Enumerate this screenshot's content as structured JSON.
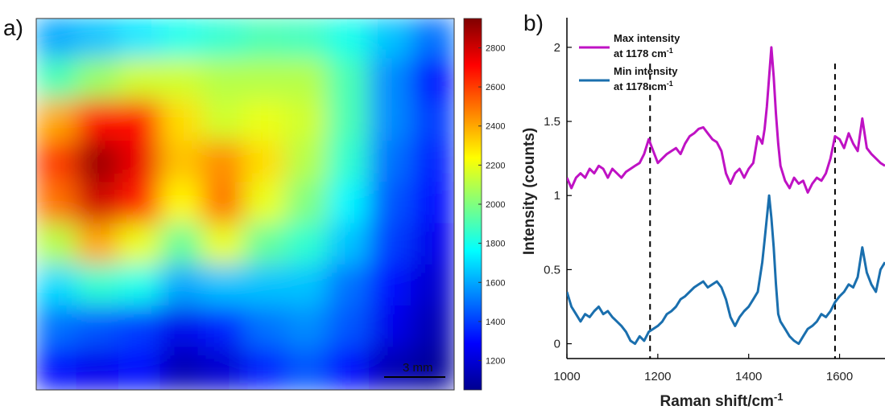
{
  "panel_a": {
    "label": "a)",
    "scale_bar_label": "3 mm",
    "colorbar_ticks": [
      1200,
      1400,
      1600,
      1800,
      2000,
      2200,
      2400,
      2600,
      2800
    ],
    "colorbar_range": [
      1050,
      2950
    ]
  },
  "panel_b": {
    "label": "b)",
    "legend": [
      {
        "line1": "Max intensity",
        "line2": "at 1178 cm",
        "sup": "-1",
        "color": "#bf12c4"
      },
      {
        "line1": "Min intensity",
        "line2": "at 1178 cm",
        "sup": "-1",
        "color": "#1a6fae"
      }
    ]
  },
  "chart_data": [
    {
      "type": "heatmap",
      "title": "",
      "grid": [
        [
          1600,
          1650,
          1720,
          1800,
          1850,
          1900,
          1880,
          1800,
          1650,
          1500
        ],
        [
          1900,
          2050,
          2150,
          2150,
          2100,
          2100,
          2100,
          1900,
          1550,
          1300
        ],
        [
          2400,
          2700,
          2700,
          2300,
          2150,
          2200,
          2150,
          1900,
          1550,
          1400
        ],
        [
          2600,
          2900,
          2750,
          2350,
          2450,
          2300,
          2100,
          1850,
          1500,
          1350
        ],
        [
          2500,
          2800,
          2650,
          2250,
          2500,
          2200,
          2000,
          1750,
          1450,
          1300
        ],
        [
          2100,
          2400,
          2200,
          1950,
          2200,
          1950,
          1850,
          1650,
          1400,
          1250
        ],
        [
          1700,
          1850,
          1800,
          1600,
          1650,
          1650,
          1650,
          1500,
          1300,
          1200
        ],
        [
          1500,
          1450,
          1400,
          1250,
          1350,
          1500,
          1550,
          1450,
          1250,
          1150
        ],
        [
          1300,
          1250,
          1300,
          1150,
          1200,
          1350,
          1450,
          1300,
          1150,
          1100
        ]
      ],
      "colorbar_range": [
        1050,
        2950
      ]
    },
    {
      "type": "line",
      "xlabel": "Raman shift/cm",
      "xlabel_sup": "-1",
      "ylabel": "Intensity (counts)",
      "xlim": [
        1000,
        1700
      ],
      "ylim": [
        -0.1,
        2.2
      ],
      "xticks": [
        1000,
        1200,
        1400,
        1600
      ],
      "yticks": [
        0,
        0.5,
        1,
        1.5,
        2
      ],
      "vlines": [
        1183,
        1590
      ],
      "series": [
        {
          "name": "Max intensity at 1178 cm-1",
          "color": "#bf12c4",
          "x": [
            1000,
            1010,
            1020,
            1030,
            1040,
            1050,
            1060,
            1070,
            1080,
            1090,
            1100,
            1110,
            1120,
            1130,
            1140,
            1150,
            1160,
            1170,
            1180,
            1190,
            1200,
            1210,
            1220,
            1230,
            1240,
            1250,
            1260,
            1270,
            1280,
            1290,
            1300,
            1310,
            1320,
            1330,
            1340,
            1350,
            1360,
            1370,
            1380,
            1390,
            1400,
            1410,
            1420,
            1425,
            1430,
            1435,
            1440,
            1445,
            1450,
            1455,
            1460,
            1465,
            1470,
            1480,
            1490,
            1500,
            1510,
            1520,
            1530,
            1540,
            1550,
            1560,
            1570,
            1580,
            1590,
            1600,
            1610,
            1620,
            1630,
            1640,
            1650,
            1660,
            1670,
            1680,
            1690,
            1700
          ],
          "y": [
            1.12,
            1.05,
            1.12,
            1.15,
            1.12,
            1.18,
            1.15,
            1.2,
            1.18,
            1.12,
            1.18,
            1.15,
            1.12,
            1.16,
            1.18,
            1.2,
            1.22,
            1.28,
            1.38,
            1.3,
            1.22,
            1.25,
            1.28,
            1.3,
            1.32,
            1.28,
            1.35,
            1.4,
            1.42,
            1.45,
            1.46,
            1.42,
            1.38,
            1.36,
            1.3,
            1.15,
            1.08,
            1.15,
            1.18,
            1.12,
            1.18,
            1.22,
            1.4,
            1.38,
            1.35,
            1.45,
            1.6,
            1.8,
            2.0,
            1.8,
            1.55,
            1.35,
            1.2,
            1.1,
            1.05,
            1.12,
            1.08,
            1.1,
            1.02,
            1.08,
            1.12,
            1.1,
            1.15,
            1.25,
            1.4,
            1.38,
            1.32,
            1.42,
            1.35,
            1.3,
            1.52,
            1.32,
            1.28,
            1.25,
            1.22,
            1.2
          ]
        },
        {
          "name": "Min intensity at 1178 cm-1",
          "color": "#1a6fae",
          "x": [
            1000,
            1010,
            1020,
            1030,
            1040,
            1050,
            1060,
            1070,
            1080,
            1090,
            1100,
            1110,
            1120,
            1130,
            1140,
            1150,
            1160,
            1170,
            1180,
            1190,
            1200,
            1210,
            1220,
            1230,
            1240,
            1250,
            1260,
            1270,
            1280,
            1290,
            1300,
            1310,
            1320,
            1330,
            1340,
            1350,
            1360,
            1370,
            1380,
            1390,
            1400,
            1410,
            1420,
            1425,
            1430,
            1435,
            1440,
            1445,
            1450,
            1455,
            1460,
            1465,
            1470,
            1480,
            1490,
            1500,
            1510,
            1520,
            1530,
            1540,
            1550,
            1560,
            1570,
            1580,
            1590,
            1600,
            1610,
            1620,
            1630,
            1640,
            1650,
            1660,
            1670,
            1680,
            1690,
            1700
          ],
          "y": [
            0.35,
            0.25,
            0.2,
            0.15,
            0.2,
            0.18,
            0.22,
            0.25,
            0.2,
            0.22,
            0.18,
            0.15,
            0.12,
            0.08,
            0.02,
            0.0,
            0.05,
            0.02,
            0.08,
            0.1,
            0.12,
            0.15,
            0.2,
            0.22,
            0.25,
            0.3,
            0.32,
            0.35,
            0.38,
            0.4,
            0.42,
            0.38,
            0.4,
            0.42,
            0.38,
            0.3,
            0.18,
            0.12,
            0.18,
            0.22,
            0.25,
            0.3,
            0.35,
            0.45,
            0.55,
            0.7,
            0.85,
            1.0,
            0.85,
            0.65,
            0.4,
            0.2,
            0.15,
            0.1,
            0.05,
            0.02,
            0.0,
            0.05,
            0.1,
            0.12,
            0.15,
            0.2,
            0.18,
            0.22,
            0.28,
            0.32,
            0.35,
            0.4,
            0.38,
            0.45,
            0.65,
            0.48,
            0.4,
            0.35,
            0.5,
            0.55
          ]
        }
      ]
    }
  ]
}
